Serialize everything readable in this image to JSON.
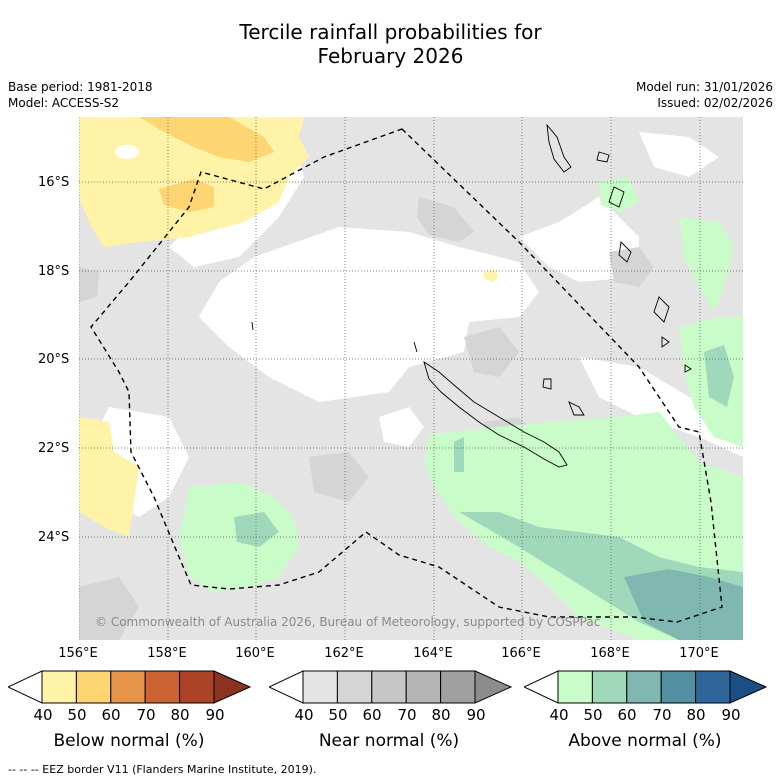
{
  "title_line1": "Tercile rainfall probabilities for",
  "title_line2": "February 2026",
  "meta_left": {
    "base_period": "Base period: 1981-2018",
    "model": "Model: ACCESS-S2"
  },
  "meta_right": {
    "model_run": "Model run: 31/01/2026",
    "issued": "Issued: 02/02/2026"
  },
  "lat_labels": [
    "16°S",
    "18°S",
    "20°S",
    "22°S",
    "24°S"
  ],
  "lon_labels": [
    "156°E",
    "158°E",
    "160°E",
    "162°E",
    "164°E",
    "166°E",
    "168°E",
    "170°E"
  ],
  "copyright": "© Commonwealth of Australia 2026, Bureau of Meteorology, supported by COSPPac",
  "colorbars": [
    {
      "title": "Below normal (%)",
      "ticks": [
        "40",
        "50",
        "60",
        "70",
        "80",
        "90"
      ],
      "colors": [
        "#fff3a8",
        "#fdd572",
        "#e59449",
        "#cd6333",
        "#ac4326",
        "#8b3220"
      ]
    },
    {
      "title": "Near normal (%)",
      "ticks": [
        "40",
        "50",
        "60",
        "70",
        "80",
        "90"
      ],
      "colors": [
        "#e4e4e4",
        "#d5d5d5",
        "#c6c6c6",
        "#b4b4b4",
        "#a0a0a0",
        "#8c8c8c"
      ]
    },
    {
      "title": "Above normal (%)",
      "ticks": [
        "40",
        "50",
        "60",
        "70",
        "80",
        "90"
      ],
      "colors": [
        "#c9fcc8",
        "#a0d8bc",
        "#80b7b1",
        "#5590a2",
        "#2f6699",
        "#1a4e85"
      ]
    }
  ],
  "footnote": "-- -- -- EEZ border V11 (Flanders Marine Institute, 2019)."
}
